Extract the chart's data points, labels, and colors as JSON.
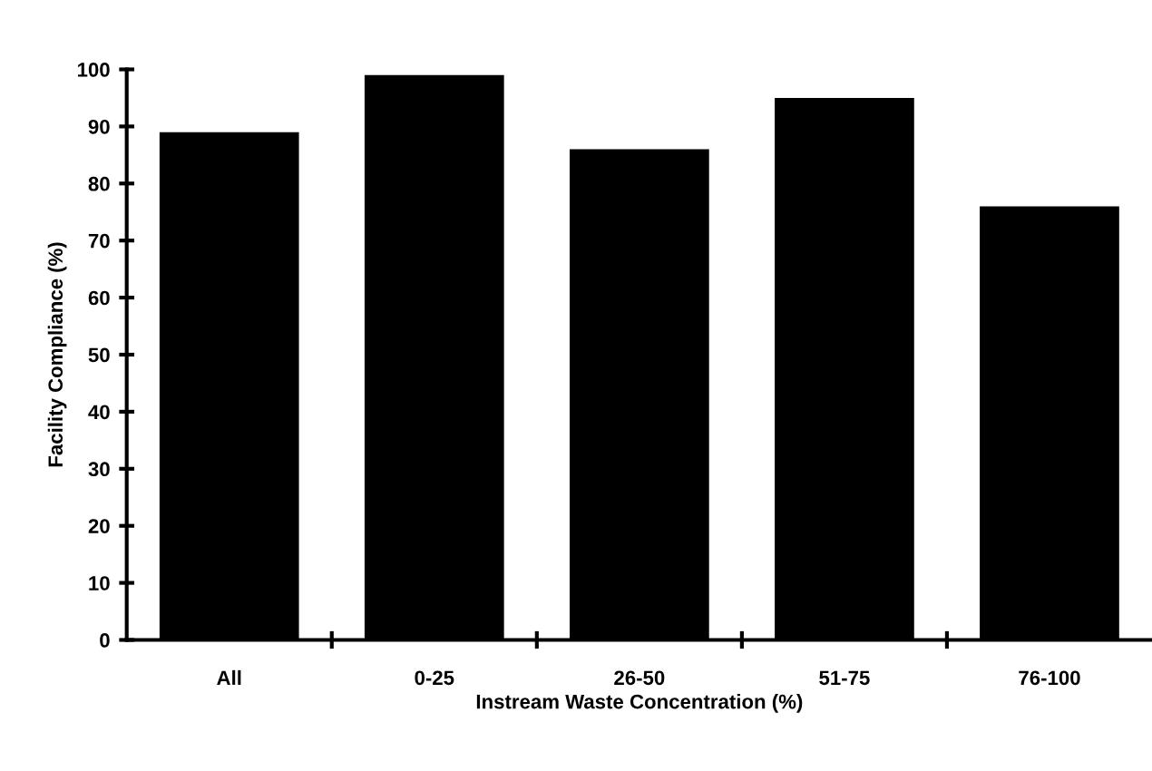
{
  "chart_data": {
    "type": "bar",
    "xlabel": "Instream Waste Concentration (%)",
    "ylabel": "Facility Compliance (%)",
    "categories": [
      "All",
      "0-25",
      "26-50",
      "51-75",
      "76-100"
    ],
    "values": [
      89,
      99,
      86,
      95,
      76
    ],
    "color": "#000000",
    "ylim": [
      0,
      100
    ],
    "yticks": [
      0,
      10,
      20,
      30,
      40,
      50,
      60,
      70,
      80,
      90,
      100
    ],
    "grid": false
  }
}
